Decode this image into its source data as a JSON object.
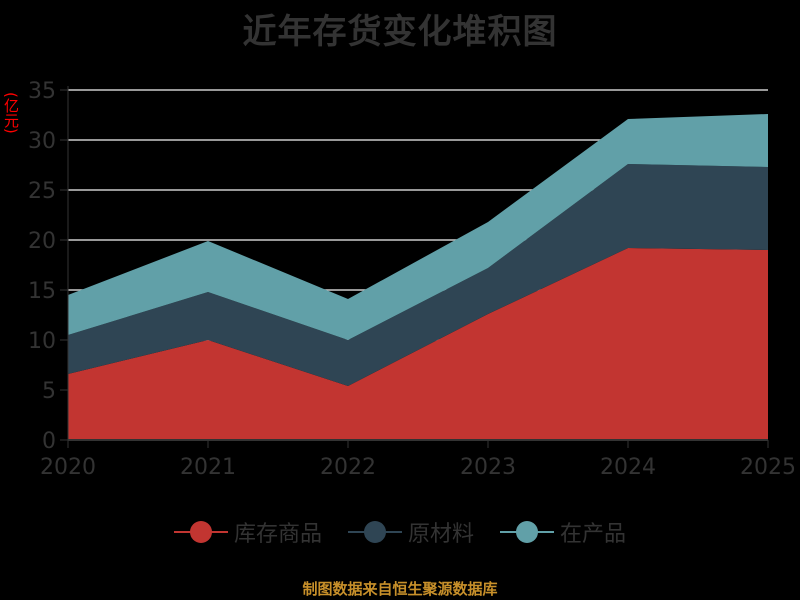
{
  "title": "近年存货变化堆积图",
  "y_unit": "(亿元)",
  "footer": "制图数据来自恒生聚源数据库",
  "legend": [
    {
      "label": "库存商品",
      "color": "#c23531"
    },
    {
      "label": "原材料",
      "color": "#2f4554"
    },
    {
      "label": "在产品",
      "color": "#61a0a8"
    }
  ],
  "chart_data": {
    "type": "area",
    "stacked": true,
    "title": "近年存货变化堆积图",
    "xlabel": "",
    "ylabel": "(亿元)",
    "x": [
      "2020",
      "2021",
      "2022",
      "2023",
      "2024",
      "2025"
    ],
    "series": [
      {
        "name": "库存商品",
        "color": "#c23531",
        "values": [
          6.6,
          10.0,
          5.4,
          12.6,
          19.2,
          19.0
        ]
      },
      {
        "name": "原材料",
        "color": "#2f4554",
        "values": [
          3.9,
          4.8,
          4.6,
          4.6,
          8.4,
          8.3
        ]
      },
      {
        "name": "在产品",
        "color": "#61a0a8",
        "values": [
          4.0,
          5.1,
          4.1,
          4.6,
          4.5,
          5.3
        ]
      }
    ],
    "ylim": [
      0,
      35
    ],
    "yticks": [
      0,
      5,
      10,
      15,
      20,
      25,
      30,
      35
    ],
    "grid": true,
    "legend_position": "bottom"
  }
}
